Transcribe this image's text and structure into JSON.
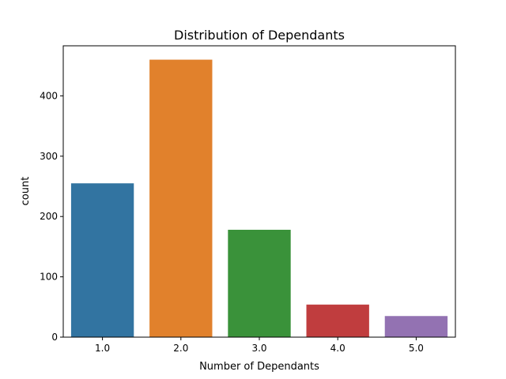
{
  "chart_data": {
    "type": "bar",
    "title": "Distribution of Dependants",
    "xlabel": "Number of Dependants",
    "ylabel": "count",
    "categories": [
      "1.0",
      "2.0",
      "3.0",
      "4.0",
      "5.0"
    ],
    "values": [
      255,
      460,
      178,
      54,
      35
    ],
    "colors": [
      "#3274a1",
      "#e1812c",
      "#3a923a",
      "#c03d3e",
      "#9372b2"
    ],
    "ylim": [
      0,
      483
    ],
    "yticks": [
      0,
      100,
      200,
      300,
      400
    ],
    "grid": false,
    "legend": "none"
  }
}
